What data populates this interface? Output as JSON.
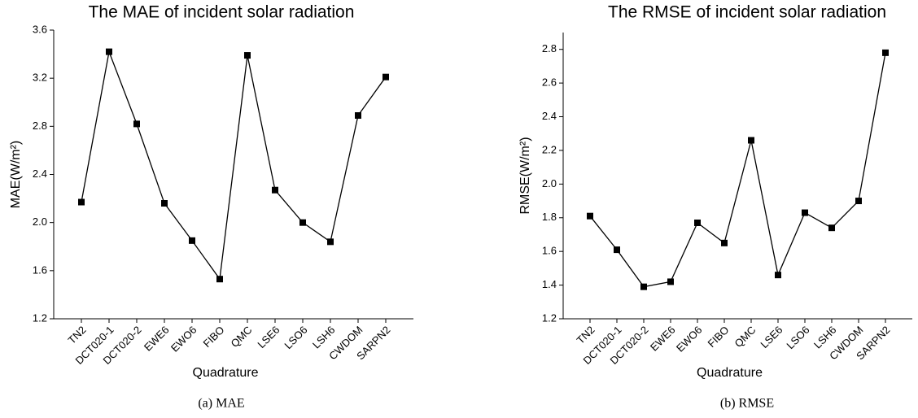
{
  "chart_data": [
    {
      "type": "line",
      "title": "The MAE of incident solar radiation",
      "xlabel": "Quadrature",
      "ylabel": "MAE(W/m²)",
      "caption": "(a) MAE",
      "categories": [
        "TN2",
        "DCT020-1",
        "DCT020-2",
        "EWE6",
        "EWO6",
        "FIBO",
        "QMC",
        "LSE6",
        "LSO6",
        "LSH6",
        "CWDOM",
        "SARPN2"
      ],
      "values": [
        2.17,
        3.42,
        2.82,
        2.16,
        1.85,
        1.53,
        3.39,
        2.27,
        2.0,
        1.84,
        2.89,
        3.21
      ],
      "color": "#000000",
      "ylim": [
        1.2,
        3.6
      ],
      "yticks": [
        1.2,
        1.6,
        {
          "value": 2.0,
          "label": "2.0"
        },
        2.4,
        2.8,
        3.2,
        3.6
      ]
    },
    {
      "type": "line",
      "title": "The RMSE of incident solar radiation",
      "xlabel": "Quadrature",
      "ylabel": "RMSE(W/m²)",
      "caption": "(b) RMSE",
      "categories": [
        "TN2",
        "DCT020-1",
        "DCT020-2",
        "EWE6",
        "EWO6",
        "FIBO",
        "QMC",
        "LSE6",
        "LSO6",
        "LSH6",
        "CWDOM",
        "SARPN2"
      ],
      "values": [
        1.81,
        1.61,
        1.39,
        1.42,
        1.77,
        1.65,
        2.26,
        1.46,
        1.83,
        1.74,
        1.9,
        2.78
      ],
      "color": "#000000",
      "ylim": [
        1.2,
        2.9
      ],
      "yticks": [
        1.2,
        1.4,
        1.6,
        1.8,
        {
          "value": 2.0,
          "label": "2.0"
        },
        2.2,
        2.4,
        2.6,
        2.8
      ]
    }
  ]
}
